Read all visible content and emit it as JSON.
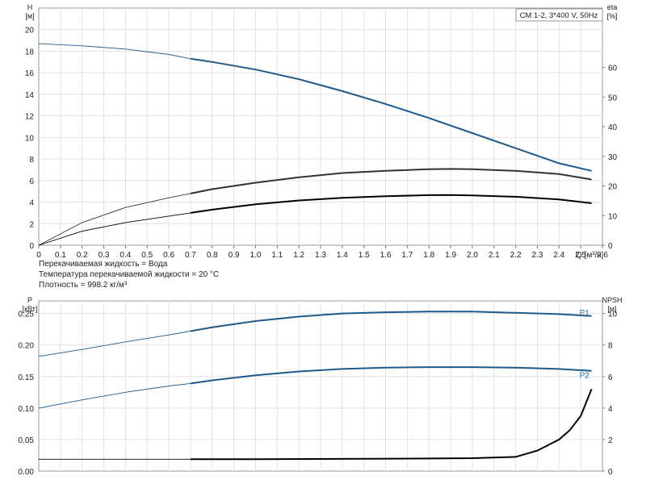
{
  "chart_data": [
    {
      "type": "line",
      "title": "CM 1-2, 3*400 V, 50Hz",
      "left_axis": {
        "label_line1": "H",
        "label_line2": "[м]",
        "ylim": [
          0,
          22
        ],
        "ticks": [
          "0",
          "2",
          "4",
          "6",
          "8",
          "10",
          "12",
          "14",
          "16",
          "18",
          "20"
        ]
      },
      "right_axis": {
        "label_line1": "eta",
        "label_line2": "[%]",
        "ylim": [
          0,
          80
        ],
        "ticks": [
          "0",
          "10",
          "20",
          "30",
          "40",
          "50",
          "60"
        ]
      },
      "x_axis": {
        "label": "Q [м³/ч]",
        "xlim": [
          0,
          2.6
        ],
        "ticks": [
          "0",
          "0.1",
          "0.2",
          "0.3",
          "0.4",
          "0.5",
          "0.6",
          "0.7",
          "0.8",
          "0.9",
          "1.0",
          "1.1",
          "1.2",
          "1.3",
          "1.4",
          "1.5",
          "1.6",
          "1.7",
          "1.8",
          "1.9",
          "2.0",
          "2.1",
          "2.2",
          "2.3",
          "2.4",
          "2.5",
          "2.6"
        ]
      },
      "grid": true,
      "series": [
        {
          "color": "#1d5a8c",
          "axis": "left",
          "x": [
            0,
            0.2,
            0.4,
            0.6,
            0.7,
            0.8,
            1.0,
            1.2,
            1.4,
            1.6,
            1.8,
            2.0,
            2.2,
            2.4,
            2.55
          ],
          "y": [
            18.7,
            18.5,
            18.2,
            17.7,
            17.3,
            17.0,
            16.3,
            15.4,
            14.3,
            13.1,
            11.8,
            10.4,
            9.0,
            7.6,
            6.9
          ]
        },
        {
          "color": "#333333",
          "axis": "left",
          "x": [
            0,
            0.2,
            0.4,
            0.6,
            0.7,
            0.8,
            1.0,
            1.2,
            1.4,
            1.6,
            1.8,
            1.9,
            2.0,
            2.2,
            2.4,
            2.55
          ],
          "y": [
            0,
            2.1,
            3.5,
            4.4,
            4.8,
            5.2,
            5.8,
            6.3,
            6.7,
            6.9,
            7.05,
            7.08,
            7.05,
            6.9,
            6.6,
            6.1
          ]
        },
        {
          "color": "#000000",
          "axis": "left",
          "x": [
            0,
            0.2,
            0.4,
            0.6,
            0.7,
            0.8,
            1.0,
            1.2,
            1.4,
            1.6,
            1.8,
            1.9,
            2.0,
            2.2,
            2.4,
            2.55
          ],
          "y": [
            0,
            1.3,
            2.1,
            2.7,
            3.0,
            3.3,
            3.8,
            4.15,
            4.4,
            4.55,
            4.65,
            4.66,
            4.62,
            4.5,
            4.25,
            3.9
          ]
        }
      ]
    },
    {
      "type": "line",
      "left_axis": {
        "label_line1": "P",
        "label_line2": "[кВт]",
        "ylim": [
          0,
          0.27
        ],
        "ticks": [
          "0.00",
          "0.05",
          "0.10",
          "0.15",
          "0.20",
          "0.25"
        ]
      },
      "right_axis": {
        "label_line1": "NPSH",
        "label_line2": "[м]",
        "ylim": [
          0,
          10.8
        ],
        "ticks": [
          "0",
          "2",
          "4",
          "6",
          "8",
          "10"
        ]
      },
      "x_axis": {
        "xlim": [
          0,
          2.6
        ]
      },
      "grid": true,
      "series": [
        {
          "name": "P1",
          "color": "#1d5a8c",
          "axis": "left",
          "x": [
            0,
            0.2,
            0.4,
            0.6,
            0.7,
            0.8,
            1.0,
            1.2,
            1.4,
            1.6,
            1.8,
            2.0,
            2.2,
            2.4,
            2.55
          ],
          "y": [
            0.182,
            0.193,
            0.205,
            0.216,
            0.222,
            0.228,
            0.238,
            0.245,
            0.25,
            0.252,
            0.253,
            0.253,
            0.251,
            0.249,
            0.246
          ]
        },
        {
          "name": "P2",
          "color": "#1d5a8c",
          "axis": "left",
          "x": [
            0,
            0.2,
            0.4,
            0.6,
            0.7,
            0.8,
            1.0,
            1.2,
            1.4,
            1.6,
            1.8,
            2.0,
            2.2,
            2.4,
            2.55
          ],
          "y": [
            0.1,
            0.113,
            0.125,
            0.135,
            0.139,
            0.144,
            0.152,
            0.158,
            0.162,
            0.164,
            0.165,
            0.165,
            0.164,
            0.162,
            0.159
          ]
        },
        {
          "color": "#000000",
          "axis": "right",
          "x": [
            0,
            0.7,
            1.0,
            1.5,
            1.8,
            2.0,
            2.2,
            2.3,
            2.4,
            2.45,
            2.5,
            2.55
          ],
          "y": [
            0.75,
            0.75,
            0.76,
            0.78,
            0.8,
            0.82,
            0.9,
            1.3,
            2.0,
            2.6,
            3.5,
            5.2
          ]
        }
      ]
    }
  ],
  "notes": [
    "Перекачиваемая жидкость = Вода",
    "Температура перекачиваемой жидкости = 20 °C",
    "Плотность = 998.2 кг/м³"
  ]
}
